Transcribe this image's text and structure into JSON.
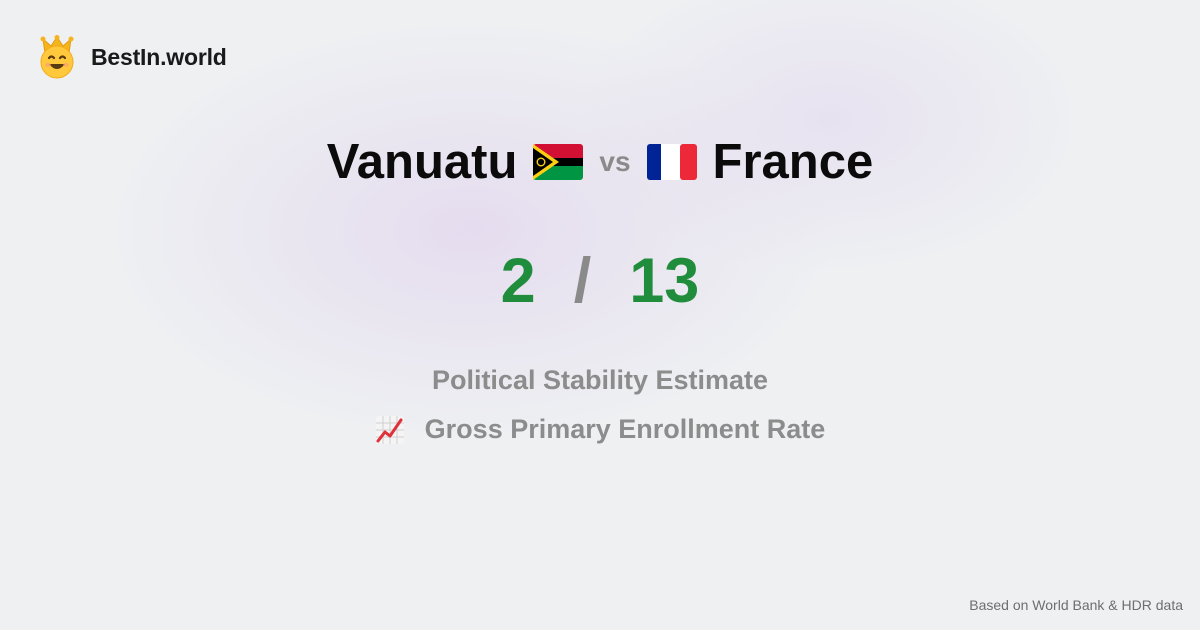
{
  "brand": {
    "name": "BestIn.world",
    "logo_icon": "crowned-smiley-icon"
  },
  "comparison": {
    "country_a": {
      "name": "Vanuatu",
      "flag_icon": "vanuatu-flag-icon"
    },
    "vs_label": "vs",
    "country_b": {
      "name": "France",
      "flag_icon": "france-flag-icon"
    }
  },
  "score": {
    "a": "2",
    "separator": "/",
    "b": "13",
    "color": "#1f8d3b"
  },
  "metrics": [
    {
      "label": "Political Stability Estimate"
    },
    {
      "label": "Gross Primary Enrollment Rate",
      "icon": "chart-increasing-icon"
    }
  ],
  "footer": {
    "source_note": "Based on World Bank & HDR data"
  }
}
